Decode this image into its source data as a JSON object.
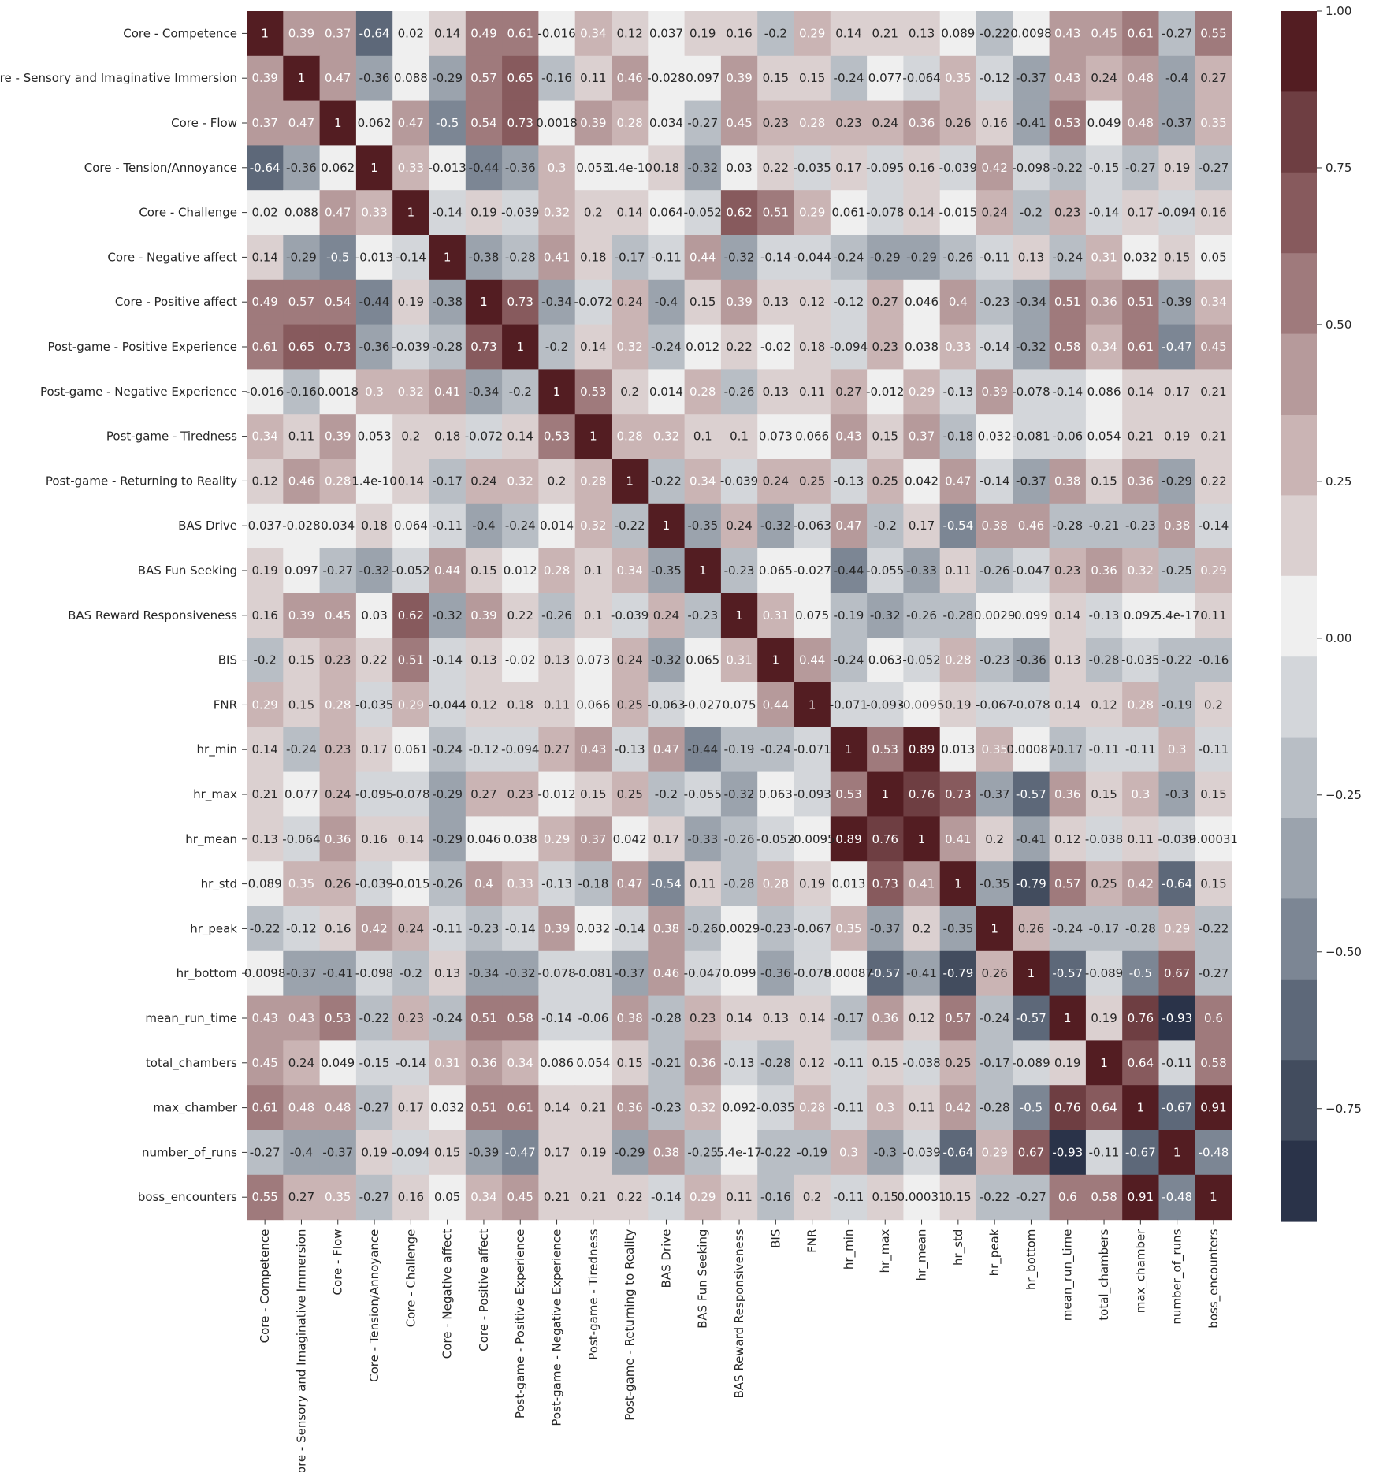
{
  "chart_data": {
    "type": "heatmap",
    "title": "",
    "xlabel": "",
    "ylabel": "",
    "labels": [
      "Core - Competence",
      "Core - Sensory and Imaginative Immersion",
      "Core - Flow",
      "Core - Tension/Annoyance",
      "Core - Challenge",
      "Core - Negative affect",
      "Core - Positive affect",
      "Post-game - Positive Experience",
      "Post-game - Negative Experience",
      "Post-game - Tiredness",
      "Post-game - Returning to Reality",
      "BAS Drive",
      "BAS Fun Seeking",
      "BAS Reward Responsiveness",
      "BIS",
      "FNR",
      "hr_min",
      "hr_max",
      "hr_mean",
      "hr_std",
      "hr_peak",
      "hr_bottom",
      "mean_run_time",
      "total_chambers",
      "max_chamber",
      "number_of_runs",
      "boss_encounters"
    ],
    "values": [
      [
        "1",
        "0.39",
        "0.37",
        "-0.64",
        "0.02",
        "0.14",
        "0.49",
        "0.61",
        "-0.016",
        "0.34",
        "0.12",
        "0.037",
        "0.19",
        "0.16",
        "-0.2",
        "0.29",
        "0.14",
        "0.21",
        "0.13",
        "0.089",
        "-0.22",
        "0.0098",
        "0.43",
        "0.45",
        "0.61",
        "-0.27",
        "0.55"
      ],
      [
        "0.39",
        "1",
        "0.47",
        "-0.36",
        "0.088",
        "-0.29",
        "0.57",
        "0.65",
        "-0.16",
        "0.11",
        "0.46",
        "-0.028",
        "0.097",
        "0.39",
        "0.15",
        "0.15",
        "-0.24",
        "0.077",
        "-0.064",
        "0.35",
        "-0.12",
        "-0.37",
        "0.43",
        "0.24",
        "0.48",
        "-0.4",
        "0.27"
      ],
      [
        "0.37",
        "0.47",
        "1",
        "0.062",
        "0.47",
        "-0.5",
        "0.54",
        "0.73",
        "0.0018",
        "0.39",
        "0.28",
        "0.034",
        "-0.27",
        "0.45",
        "0.23",
        "0.28",
        "0.23",
        "0.24",
        "0.36",
        "0.26",
        "0.16",
        "-0.41",
        "0.53",
        "0.049",
        "0.48",
        "-0.37",
        "0.35"
      ],
      [
        "-0.64",
        "-0.36",
        "0.062",
        "1",
        "0.33",
        "-0.013",
        "-0.44",
        "-0.36",
        "0.3",
        "0.053",
        "1.4e-10",
        "0.18",
        "-0.32",
        "0.03",
        "0.22",
        "-0.035",
        "0.17",
        "-0.095",
        "0.16",
        "-0.039",
        "0.42",
        "-0.098",
        "-0.22",
        "-0.15",
        "-0.27",
        "0.19",
        "-0.27"
      ],
      [
        "0.02",
        "0.088",
        "0.47",
        "0.33",
        "1",
        "-0.14",
        "0.19",
        "-0.039",
        "0.32",
        "0.2",
        "0.14",
        "0.064",
        "-0.052",
        "0.62",
        "0.51",
        "0.29",
        "0.061",
        "-0.078",
        "0.14",
        "-0.015",
        "0.24",
        "-0.2",
        "0.23",
        "-0.14",
        "0.17",
        "-0.094",
        "0.16"
      ],
      [
        "0.14",
        "-0.29",
        "-0.5",
        "-0.013",
        "-0.14",
        "1",
        "-0.38",
        "-0.28",
        "0.41",
        "0.18",
        "-0.17",
        "-0.11",
        "0.44",
        "-0.32",
        "-0.14",
        "-0.044",
        "-0.24",
        "-0.29",
        "-0.29",
        "-0.26",
        "-0.11",
        "0.13",
        "-0.24",
        "0.31",
        "0.032",
        "0.15",
        "0.05"
      ],
      [
        "0.49",
        "0.57",
        "0.54",
        "-0.44",
        "0.19",
        "-0.38",
        "1",
        "0.73",
        "-0.34",
        "-0.072",
        "0.24",
        "-0.4",
        "0.15",
        "0.39",
        "0.13",
        "0.12",
        "-0.12",
        "0.27",
        "0.046",
        "0.4",
        "-0.23",
        "-0.34",
        "0.51",
        "0.36",
        "0.51",
        "-0.39",
        "0.34"
      ],
      [
        "0.61",
        "0.65",
        "0.73",
        "-0.36",
        "-0.039",
        "-0.28",
        "0.73",
        "1",
        "-0.2",
        "0.14",
        "0.32",
        "-0.24",
        "0.012",
        "0.22",
        "-0.02",
        "0.18",
        "-0.094",
        "0.23",
        "0.038",
        "0.33",
        "-0.14",
        "-0.32",
        "0.58",
        "0.34",
        "0.61",
        "-0.47",
        "0.45"
      ],
      [
        "-0.016",
        "-0.16",
        "0.0018",
        "0.3",
        "0.32",
        "0.41",
        "-0.34",
        "-0.2",
        "1",
        "0.53",
        "0.2",
        "0.014",
        "0.28",
        "-0.26",
        "0.13",
        "0.11",
        "0.27",
        "-0.012",
        "0.29",
        "-0.13",
        "0.39",
        "-0.078",
        "-0.14",
        "0.086",
        "0.14",
        "0.17",
        "0.21"
      ],
      [
        "0.34",
        "0.11",
        "0.39",
        "0.053",
        "0.2",
        "0.18",
        "-0.072",
        "0.14",
        "0.53",
        "1",
        "0.28",
        "0.32",
        "0.1",
        "0.1",
        "0.073",
        "0.066",
        "0.43",
        "0.15",
        "0.37",
        "-0.18",
        "0.032",
        "-0.081",
        "-0.06",
        "0.054",
        "0.21",
        "0.19",
        "0.21"
      ],
      [
        "0.12",
        "0.46",
        "0.28",
        "1.4e-10",
        "0.14",
        "-0.17",
        "0.24",
        "0.32",
        "0.2",
        "0.28",
        "1",
        "-0.22",
        "0.34",
        "-0.039",
        "0.24",
        "0.25",
        "-0.13",
        "0.25",
        "0.042",
        "0.47",
        "-0.14",
        "-0.37",
        "0.38",
        "0.15",
        "0.36",
        "-0.29",
        "0.22"
      ],
      [
        "0.037",
        "-0.028",
        "0.034",
        "0.18",
        "0.064",
        "-0.11",
        "-0.4",
        "-0.24",
        "0.014",
        "0.32",
        "-0.22",
        "1",
        "-0.35",
        "0.24",
        "-0.32",
        "-0.063",
        "0.47",
        "-0.2",
        "0.17",
        "-0.54",
        "0.38",
        "0.46",
        "-0.28",
        "-0.21",
        "-0.23",
        "0.38",
        "-0.14"
      ],
      [
        "0.19",
        "0.097",
        "-0.27",
        "-0.32",
        "-0.052",
        "0.44",
        "0.15",
        "0.012",
        "0.28",
        "0.1",
        "0.34",
        "-0.35",
        "1",
        "-0.23",
        "0.065",
        "-0.027",
        "-0.44",
        "-0.055",
        "-0.33",
        "0.11",
        "-0.26",
        "-0.047",
        "0.23",
        "0.36",
        "0.32",
        "-0.25",
        "0.29"
      ],
      [
        "0.16",
        "0.39",
        "0.45",
        "0.03",
        "0.62",
        "-0.32",
        "0.39",
        "0.22",
        "-0.26",
        "0.1",
        "-0.039",
        "0.24",
        "-0.23",
        "1",
        "0.31",
        "0.075",
        "-0.19",
        "-0.32",
        "-0.26",
        "-0.28",
        "0.0029",
        "0.099",
        "0.14",
        "-0.13",
        "0.092",
        "5.4e-17",
        "0.11"
      ],
      [
        "-0.2",
        "0.15",
        "0.23",
        "0.22",
        "0.51",
        "-0.14",
        "0.13",
        "-0.02",
        "0.13",
        "0.073",
        "0.24",
        "-0.32",
        "0.065",
        "0.31",
        "1",
        "0.44",
        "-0.24",
        "0.063",
        "-0.052",
        "0.28",
        "-0.23",
        "-0.36",
        "0.13",
        "-0.28",
        "-0.035",
        "-0.22",
        "-0.16"
      ],
      [
        "0.29",
        "0.15",
        "0.28",
        "-0.035",
        "0.29",
        "-0.044",
        "0.12",
        "0.18",
        "0.11",
        "0.066",
        "0.25",
        "-0.063",
        "-0.027",
        "0.075",
        "0.44",
        "1",
        "-0.071",
        "-0.093",
        "-0.0095",
        "0.19",
        "-0.067",
        "-0.078",
        "0.14",
        "0.12",
        "0.28",
        "-0.19",
        "0.2"
      ],
      [
        "0.14",
        "-0.24",
        "0.23",
        "0.17",
        "0.061",
        "-0.24",
        "-0.12",
        "-0.094",
        "0.27",
        "0.43",
        "-0.13",
        "0.47",
        "-0.44",
        "-0.19",
        "-0.24",
        "-0.071",
        "1",
        "0.53",
        "0.89",
        "0.013",
        "0.35",
        "0.00087",
        "-0.17",
        "-0.11",
        "-0.11",
        "0.3",
        "-0.11"
      ],
      [
        "0.21",
        "0.077",
        "0.24",
        "-0.095",
        "-0.078",
        "-0.29",
        "0.27",
        "0.23",
        "-0.012",
        "0.15",
        "0.25",
        "-0.2",
        "-0.055",
        "-0.32",
        "0.063",
        "-0.093",
        "0.53",
        "1",
        "0.76",
        "0.73",
        "-0.37",
        "-0.57",
        "0.36",
        "0.15",
        "0.3",
        "-0.3",
        "0.15"
      ],
      [
        "0.13",
        "-0.064",
        "0.36",
        "0.16",
        "0.14",
        "-0.29",
        "0.046",
        "0.038",
        "0.29",
        "0.37",
        "0.042",
        "0.17",
        "-0.33",
        "-0.26",
        "-0.052",
        "-0.0095",
        "0.89",
        "0.76",
        "1",
        "0.41",
        "0.2",
        "-0.41",
        "0.12",
        "-0.038",
        "0.11",
        "-0.039",
        "0.00031"
      ],
      [
        "0.089",
        "0.35",
        "0.26",
        "-0.039",
        "-0.015",
        "-0.26",
        "0.4",
        "0.33",
        "-0.13",
        "-0.18",
        "0.47",
        "-0.54",
        "0.11",
        "-0.28",
        "0.28",
        "0.19",
        "0.013",
        "0.73",
        "0.41",
        "1",
        "-0.35",
        "-0.79",
        "0.57",
        "0.25",
        "0.42",
        "-0.64",
        "0.15"
      ],
      [
        "-0.22",
        "-0.12",
        "0.16",
        "0.42",
        "0.24",
        "-0.11",
        "-0.23",
        "-0.14",
        "0.39",
        "0.032",
        "-0.14",
        "0.38",
        "-0.26",
        "0.0029",
        "-0.23",
        "-0.067",
        "0.35",
        "-0.37",
        "0.2",
        "-0.35",
        "1",
        "0.26",
        "-0.24",
        "-0.17",
        "-0.28",
        "0.29",
        "-0.22"
      ],
      [
        "0.0098",
        "-0.37",
        "-0.41",
        "-0.098",
        "-0.2",
        "0.13",
        "-0.34",
        "-0.32",
        "-0.078",
        "-0.081",
        "-0.37",
        "0.46",
        "-0.047",
        "0.099",
        "-0.36",
        "-0.078",
        "0.00087",
        "-0.57",
        "-0.41",
        "-0.79",
        "0.26",
        "1",
        "-0.57",
        "-0.089",
        "-0.5",
        "0.67",
        "-0.27"
      ],
      [
        "0.43",
        "0.43",
        "0.53",
        "-0.22",
        "0.23",
        "-0.24",
        "0.51",
        "0.58",
        "-0.14",
        "-0.06",
        "0.38",
        "-0.28",
        "0.23",
        "0.14",
        "0.13",
        "0.14",
        "-0.17",
        "0.36",
        "0.12",
        "0.57",
        "-0.24",
        "-0.57",
        "1",
        "0.19",
        "0.76",
        "-0.93",
        "0.6"
      ],
      [
        "0.45",
        "0.24",
        "0.049",
        "-0.15",
        "-0.14",
        "0.31",
        "0.36",
        "0.34",
        "0.086",
        "0.054",
        "0.15",
        "-0.21",
        "0.36",
        "-0.13",
        "-0.28",
        "0.12",
        "-0.11",
        "0.15",
        "-0.038",
        "0.25",
        "-0.17",
        "-0.089",
        "0.19",
        "1",
        "0.64",
        "-0.11",
        "0.58"
      ],
      [
        "0.61",
        "0.48",
        "0.48",
        "-0.27",
        "0.17",
        "0.032",
        "0.51",
        "0.61",
        "0.14",
        "0.21",
        "0.36",
        "-0.23",
        "0.32",
        "0.092",
        "-0.035",
        "0.28",
        "-0.11",
        "0.3",
        "0.11",
        "0.42",
        "-0.28",
        "-0.5",
        "0.76",
        "0.64",
        "1",
        "-0.67",
        "0.91"
      ],
      [
        "-0.27",
        "-0.4",
        "-0.37",
        "0.19",
        "-0.094",
        "0.15",
        "-0.39",
        "-0.47",
        "0.17",
        "0.19",
        "-0.29",
        "0.38",
        "-0.25",
        "5.4e-17",
        "-0.22",
        "-0.19",
        "0.3",
        "-0.3",
        "-0.039",
        "-0.64",
        "0.29",
        "0.67",
        "-0.93",
        "-0.11",
        "-0.67",
        "1",
        "-0.48"
      ],
      [
        "0.55",
        "0.27",
        "0.35",
        "-0.27",
        "0.16",
        "0.05",
        "0.34",
        "0.45",
        "0.21",
        "0.21",
        "0.22",
        "-0.14",
        "0.29",
        "0.11",
        "-0.16",
        "0.2",
        "-0.11",
        "0.15",
        "0.00031",
        "0.15",
        "-0.22",
        "-0.27",
        "0.6",
        "0.58",
        "0.91",
        "-0.48",
        "1"
      ]
    ],
    "vmin": -0.93,
    "vmax": 1.0,
    "colorbar": {
      "ticks": [
        "1.00",
        "0.75",
        "0.50",
        "0.25",
        "0.00",
        "−0.25",
        "−0.50",
        "−0.75"
      ],
      "tick_values": [
        1.0,
        0.75,
        0.5,
        0.25,
        0.0,
        -0.25,
        -0.5,
        -0.75
      ],
      "colors": [
        "#531d22",
        "#6e3e42",
        "#875a5d",
        "#9f7a7c",
        "#b69a9b",
        "#cab4b4",
        "#dbd0d0",
        "#efefef",
        "#d3d6da",
        "#b8bec5",
        "#9ba3ad",
        "#7c8694",
        "#5d6879",
        "#424c5e",
        "#2a3349"
      ]
    },
    "annotation_light_threshold": 0.28,
    "annotation_dark_threshold": -0.45,
    "text_light": "#ffffff",
    "text_dark": "#262626"
  }
}
